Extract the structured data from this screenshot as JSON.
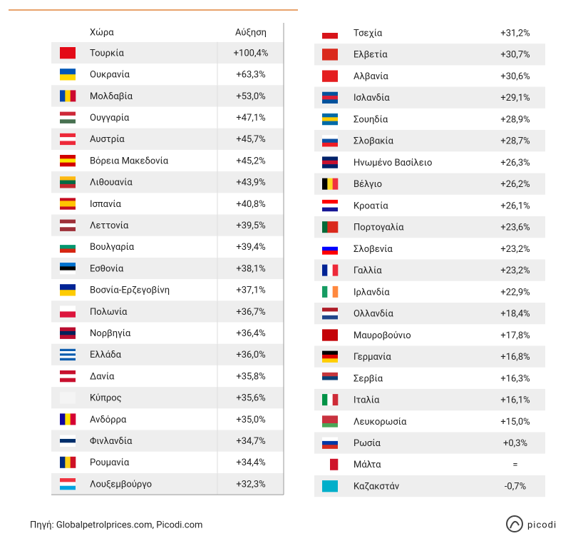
{
  "left_table": {
    "header": [
      "Χώρα",
      "Αύξηση"
    ],
    "rows": [
      [
        "Τουρκία",
        "+100,4%"
      ],
      [
        "Ουκρανία",
        "+63,3%"
      ],
      [
        "Μολδαβία",
        "+53,0%"
      ],
      [
        "Ουγγαρία",
        "+47,1%"
      ],
      [
        "Αυστρία",
        "+45,7%"
      ],
      [
        "Βόρεια Μακεδονία",
        "+45,2%"
      ],
      [
        "Λιθουανία",
        "+43,9%"
      ],
      [
        "Ισπανία",
        "+40,8%"
      ],
      [
        "Λεττονία",
        "+39,5%"
      ],
      [
        "Βουλγαρία",
        "+39,4%"
      ],
      [
        "Εσθονία",
        "+38,1%"
      ],
      [
        "Βοσνία-Ερζεγοβίνη",
        "+37,1%"
      ],
      [
        "Πολωνία",
        "+36,7%"
      ],
      [
        "Νορβηγία",
        "+36,4%"
      ],
      [
        "Ελλάδα",
        "+36,0%"
      ],
      [
        "Δανία",
        "+35,8%"
      ],
      [
        "Κύπρος",
        "+35,6%"
      ],
      [
        "Ανδόρρα",
        "+35,0%"
      ],
      [
        "Φινλανδία",
        "+34,7%"
      ],
      [
        "Ρουμανία",
        "+34,4%"
      ],
      [
        "Λουξεμβούργο",
        "+32,3%"
      ]
    ]
  },
  "right_table": {
    "rows": [
      [
        "Τσεχία",
        "+31,2%"
      ],
      [
        "Ελβετία",
        "+30,7%"
      ],
      [
        "Αλβανία",
        "+30,6%"
      ],
      [
        "Ισλανδία",
        "+29,1%"
      ],
      [
        "Σουηδία",
        "+28,9%"
      ],
      [
        "Σλοβακία",
        "+28,7%"
      ],
      [
        "Ηνωμένο Βασίλειο",
        "+26,3%"
      ],
      [
        "Βέλγιο",
        "+26,2%"
      ],
      [
        "Κροατία",
        "+26,1%"
      ],
      [
        "Πορτογαλία",
        "+23,6%"
      ],
      [
        "Σλοβενία",
        "+23,2%"
      ],
      [
        "Γαλλία",
        "+23,2%"
      ],
      [
        "Ιρλανδία",
        "+22,9%"
      ],
      [
        "Ολλανδία",
        "+18,4%"
      ],
      [
        "Μαυροβούνιο",
        "+17,8%"
      ],
      [
        "Γερμανία",
        "+16,8%"
      ],
      [
        "Σερβία",
        "+16,3%"
      ],
      [
        "Ιταλία",
        "+16,1%"
      ],
      [
        "Λευκορωσία",
        "+15,0%"
      ],
      [
        "Ρωσία",
        "+0,3%"
      ],
      [
        "Μάλτα",
        "="
      ],
      [
        "Καζακστάν",
        "-0,7%"
      ]
    ]
  },
  "footer": {
    "source": "Πηγή: Globalpetrolprices.com, Picodi.com",
    "logo": "picodi"
  }
}
